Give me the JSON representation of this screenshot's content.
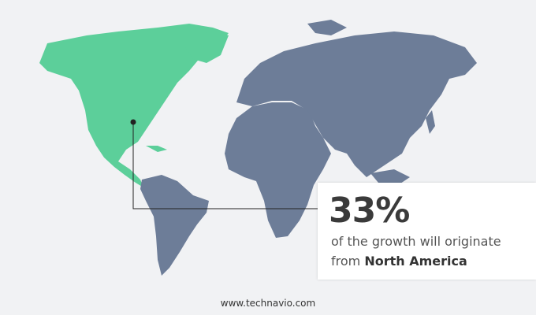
{
  "callout": {
    "percentage": "33%",
    "text_line1": "of the growth will originate",
    "text_line2_prefix": "from",
    "region": "North America"
  },
  "map": {
    "highlighted_region": "North America",
    "highlight_color": "#5ccf9a",
    "other_color": "#6d7d98",
    "background_color": "#f1f2f4"
  },
  "footer": {
    "website": "www.technavio.com"
  }
}
